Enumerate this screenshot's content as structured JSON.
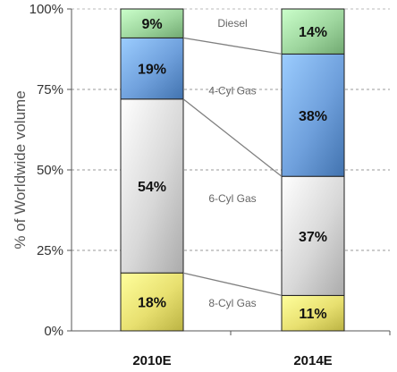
{
  "chart_data": {
    "type": "bar",
    "stacked": true,
    "categories": [
      "2010E",
      "2014E"
    ],
    "series": [
      {
        "name": "8-Cyl Gas",
        "values": [
          18,
          11
        ],
        "labels": [
          "18%",
          "11%"
        ],
        "color": "#e8e070"
      },
      {
        "name": "6-Cyl Gas",
        "values": [
          54,
          37
        ],
        "labels": [
          "54%",
          "37%"
        ],
        "color": "#d8d8d8"
      },
      {
        "name": "4-Cyl Gas",
        "values": [
          19,
          38
        ],
        "labels": [
          "19%",
          "38%"
        ],
        "color": "#6fa0dc"
      },
      {
        "name": "Diesel",
        "values": [
          9,
          14
        ],
        "labels": [
          "9%",
          "14%"
        ],
        "color": "#9ed69e"
      }
    ],
    "ylabel": "% of Worldwide volume",
    "xlabel": "",
    "ylim": [
      0,
      100
    ],
    "yticks": [
      0,
      25,
      50,
      75,
      100
    ],
    "ytick_labels": [
      "0%",
      "25%",
      "50%",
      "75%",
      "100%"
    ],
    "grid": true,
    "legend": "inline-between-bars",
    "connector_lines": true
  }
}
